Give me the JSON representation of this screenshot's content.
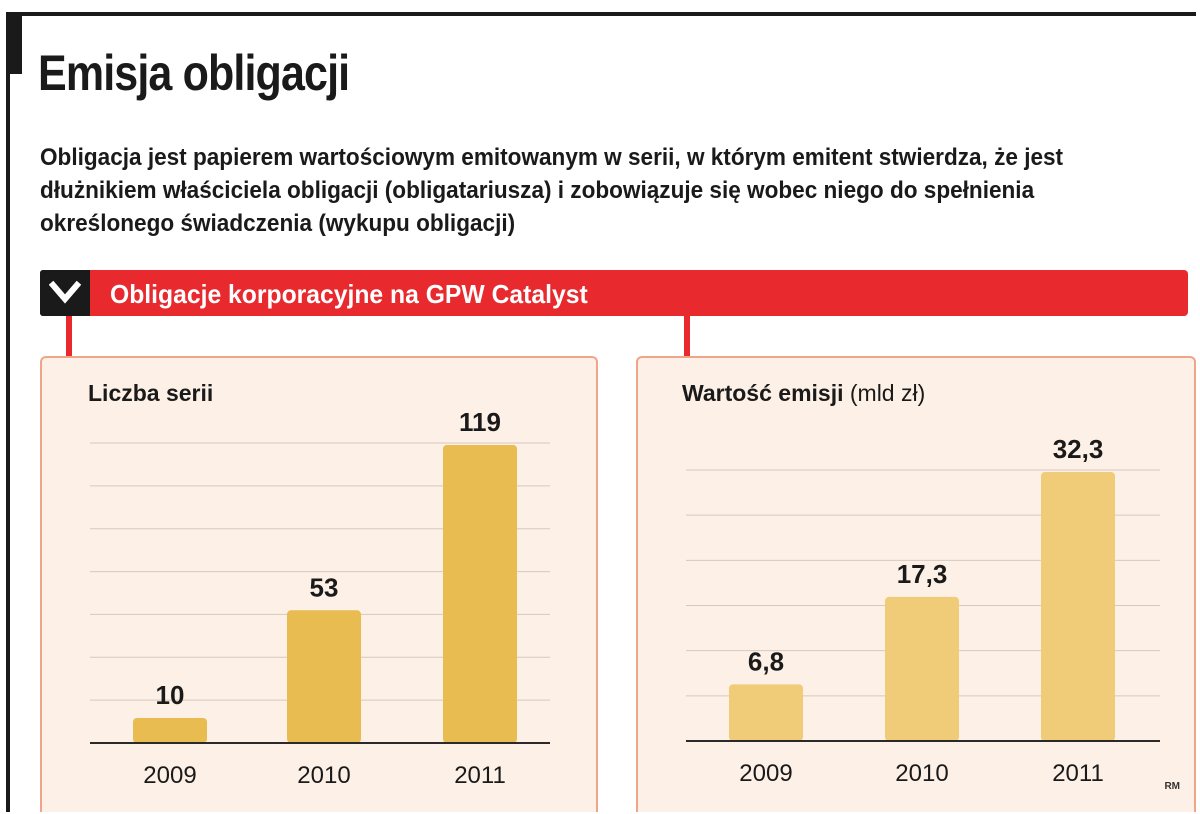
{
  "title": "Emisja obligacji",
  "lead": "Obligacja jest papierem wartościowym emitowanym w serii, w którym emitent stwierdza, że jest dłużnikiem właściciela obligacji (obligatariusza) i zobowiązuje się wobec niego do spełnienia określonego świadczenia (wykupu obligacji)",
  "section": {
    "title": "Obligacje korporacyjne na GPW Catalyst",
    "icon": "chevron-down-icon"
  },
  "credit": "RM",
  "colors": {
    "accent": "#e8292d",
    "panel_bg": "#fdf0e6",
    "panel_border": "#f0a488",
    "bar_left": "#e8bc50",
    "bar_right": "#f0cc78"
  },
  "chart_data": [
    {
      "type": "bar",
      "title": "Liczba serii",
      "unit": "",
      "categories": [
        "2009",
        "2010",
        "2011"
      ],
      "values": [
        10,
        53,
        119
      ],
      "value_labels": [
        "10",
        "53",
        "119"
      ],
      "xlabel": "",
      "ylabel": "",
      "ylim": [
        0,
        119
      ],
      "grid": true
    },
    {
      "type": "bar",
      "title": "Wartość emisji",
      "unit": "(mld zł)",
      "categories": [
        "2009",
        "2010",
        "2011"
      ],
      "values": [
        6.8,
        17.3,
        32.3
      ],
      "value_labels": [
        "6,8",
        "17,3",
        "32,3"
      ],
      "xlabel": "",
      "ylabel": "",
      "ylim": [
        0,
        32.3
      ],
      "grid": true
    }
  ]
}
